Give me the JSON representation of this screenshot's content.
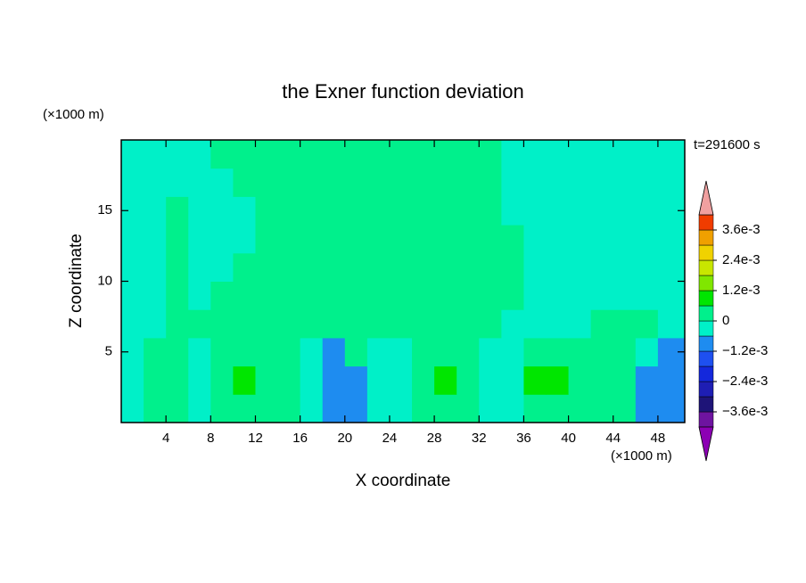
{
  "chart_data": {
    "type": "contour",
    "title": "the Exner function deviation",
    "ylabel": "Z coordinate",
    "xlabel": "X coordinate",
    "yunit": "(×1000 m)",
    "xunit": "(×1000 m)",
    "time_label": "t=291600 s",
    "xlim": [
      0,
      50.4
    ],
    "ylim": [
      0,
      20
    ],
    "xticks": [
      4,
      8,
      12,
      16,
      20,
      24,
      28,
      32,
      36,
      40,
      44,
      48
    ],
    "yticks": [
      5,
      10,
      15
    ],
    "x": [
      1,
      3,
      5,
      7,
      9,
      11,
      13,
      15,
      17,
      19,
      21,
      23,
      25,
      27,
      29,
      31,
      33,
      35,
      37,
      39,
      41,
      43,
      45,
      47,
      49
    ],
    "y": [
      1,
      3,
      5,
      7,
      9,
      11,
      13,
      15,
      17,
      19
    ],
    "z": [
      [
        -0.0003,
        0.0003,
        0.0003,
        -0.0003,
        0.0003,
        0.0003,
        0.0003,
        0.0003,
        -0.0003,
        -0.0009,
        -0.0009,
        -0.0003,
        -0.0003,
        0.0003,
        0.0003,
        0.0003,
        -0.0003,
        -0.0003,
        0.0003,
        0.0003,
        0.0003,
        0.0003,
        0.0003,
        -0.0009,
        -0.0009
      ],
      [
        -0.0003,
        0.0003,
        0.0003,
        -0.0003,
        0.0003,
        0.0009,
        0.0003,
        0.0003,
        -0.0003,
        -0.0009,
        -0.0009,
        -0.0003,
        -0.0003,
        0.0003,
        0.0009,
        0.0003,
        -0.0003,
        -0.0003,
        0.0009,
        0.0009,
        0.0003,
        0.0003,
        0.0003,
        -0.0009,
        -0.0009
      ],
      [
        -0.0003,
        0.0003,
        0.0003,
        -0.0003,
        0.0003,
        0.0003,
        0.0003,
        0.0003,
        -0.0003,
        -0.0009,
        0.0003,
        -0.0003,
        -0.0003,
        0.0003,
        0.0003,
        0.0003,
        -0.0003,
        -0.0003,
        0.0003,
        0.0003,
        0.0003,
        0.0003,
        0.0003,
        -0.0003,
        -0.0009
      ],
      [
        -0.0003,
        -0.0003,
        0.0003,
        0.0003,
        0.0003,
        0.0003,
        0.0003,
        0.0003,
        0.0003,
        0.0003,
        0.0003,
        0.0003,
        0.0003,
        0.0003,
        0.0003,
        0.0003,
        0.0003,
        -0.0003,
        -0.0003,
        -0.0003,
        -0.0003,
        0.0003,
        0.0003,
        0.0003,
        -0.0003
      ],
      [
        -0.0003,
        -0.0003,
        0.0003,
        -0.0003,
        0.0003,
        0.0003,
        0.0003,
        0.0003,
        0.0003,
        0.0003,
        0.0003,
        0.0003,
        0.0003,
        0.0003,
        0.0003,
        0.0003,
        0.0003,
        0.0003,
        -0.0003,
        -0.0003,
        -0.0003,
        -0.0003,
        -0.0003,
        -0.0003,
        -0.0003
      ],
      [
        -0.0003,
        -0.0003,
        0.0003,
        -0.0003,
        -0.0003,
        0.0003,
        0.0003,
        0.0003,
        0.0003,
        0.0003,
        0.0003,
        0.0003,
        0.0003,
        0.0003,
        0.0003,
        0.0003,
        0.0003,
        0.0003,
        -0.0003,
        -0.0003,
        -0.0003,
        -0.0003,
        -0.0003,
        -0.0003,
        -0.0003
      ],
      [
        -0.0003,
        -0.0003,
        0.0003,
        -0.0003,
        -0.0003,
        -0.0003,
        0.0003,
        0.0003,
        0.0003,
        0.0003,
        0.0003,
        0.0003,
        0.0003,
        0.0003,
        0.0003,
        0.0003,
        0.0003,
        0.0003,
        -0.0003,
        -0.0003,
        -0.0003,
        -0.0003,
        -0.0003,
        -0.0003,
        -0.0003
      ],
      [
        -0.0003,
        -0.0003,
        0.0003,
        -0.0003,
        -0.0003,
        -0.0003,
        0.0003,
        0.0003,
        0.0003,
        0.0003,
        0.0003,
        0.0003,
        0.0003,
        0.0003,
        0.0003,
        0.0003,
        0.0003,
        -0.0003,
        -0.0003,
        -0.0003,
        -0.0003,
        -0.0003,
        -0.0003,
        -0.0003,
        -0.0003
      ],
      [
        -0.0003,
        -0.0003,
        -0.0003,
        -0.0003,
        -0.0003,
        0.0003,
        0.0003,
        0.0003,
        0.0003,
        0.0003,
        0.0003,
        0.0003,
        0.0003,
        0.0003,
        0.0003,
        0.0003,
        0.0003,
        -0.0003,
        -0.0003,
        -0.0003,
        -0.0003,
        -0.0003,
        -0.0003,
        -0.0003,
        -0.0003
      ],
      [
        -0.0003,
        -0.0003,
        -0.0003,
        -0.0003,
        0.0003,
        0.0003,
        0.0003,
        0.0003,
        0.0003,
        0.0003,
        0.0003,
        0.0003,
        0.0003,
        0.0003,
        0.0003,
        0.0003,
        0.0003,
        -0.0003,
        -0.0003,
        -0.0003,
        -0.0003,
        -0.0003,
        -0.0003,
        -0.0003,
        -0.0003
      ]
    ],
    "levels": [
      -0.0042,
      -0.0036,
      -0.003,
      -0.0024,
      -0.0018,
      -0.0012,
      -0.0006,
      0,
      0.0006,
      0.0012,
      0.0018,
      0.0024,
      0.003,
      0.0036,
      0.0042
    ],
    "colors": [
      "#6e14a0",
      "#1e1478",
      "#1e1eb4",
      "#1428dc",
      "#1e50f0",
      "#1e8cf0",
      "#00f0c8",
      "#00f08c",
      "#00e600",
      "#80e600",
      "#c8e600",
      "#f0d200",
      "#f0a000",
      "#f03c00"
    ],
    "under_color": "#8c00b4",
    "over_color": "#f0a0a0",
    "cticks": [
      {
        "value": -0.0036,
        "label": "−3.6e-3"
      },
      {
        "value": -0.0024,
        "label": "−2.4e-3"
      },
      {
        "value": -0.0012,
        "label": "−1.2e-3"
      },
      0,
      {
        "value": 0.0012,
        "label": "1.2e-3"
      },
      {
        "value": 0.0024,
        "label": "2.4e-3"
      },
      {
        "value": 0.0036,
        "label": "3.6e-3"
      }
    ]
  }
}
